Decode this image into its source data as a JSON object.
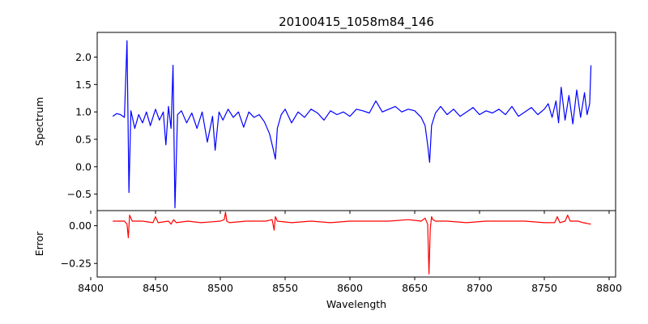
{
  "chart_data": {
    "title": "20100415_1058m84_146",
    "xlabel": "Wavelength",
    "xlim": [
      8405,
      8805
    ],
    "xticks": [
      8400,
      8450,
      8500,
      8550,
      8600,
      8650,
      8700,
      8750,
      8800
    ],
    "xtick_labels": [
      "8400",
      "8450",
      "8500",
      "8550",
      "8600",
      "8650",
      "8700",
      "8750",
      "8800"
    ],
    "panels": [
      {
        "name": "spectrum",
        "type": "line",
        "ylabel": "Spectrum",
        "ylim": [
          -0.8,
          2.45
        ],
        "yticks": [
          -0.5,
          0.0,
          0.5,
          1.0,
          1.5,
          2.0
        ],
        "ytick_labels": [
          "−0.5",
          "0.0",
          "0.5",
          "1.0",
          "1.5",
          "2.0"
        ],
        "color": "#0000ff",
        "x": [
          8417,
          8420,
          8423,
          8426,
          8428,
          8429.5,
          8431,
          8434,
          8437,
          8440,
          8443,
          8446,
          8450,
          8453,
          8456,
          8458,
          8460,
          8462,
          8463.5,
          8465,
          8467,
          8470,
          8474,
          8478,
          8482,
          8486,
          8490,
          8494,
          8496,
          8499,
          8502,
          8506,
          8510,
          8514,
          8518,
          8522,
          8526,
          8530,
          8534,
          8538,
          8541,
          8542.5,
          8544,
          8547,
          8550,
          8555,
          8560,
          8565,
          8570,
          8575,
          8580,
          8585,
          8590,
          8595,
          8600,
          8605,
          8610,
          8615,
          8620,
          8625,
          8630,
          8635,
          8640,
          8645,
          8650,
          8655,
          8658,
          8660,
          8661.5,
          8663,
          8666,
          8670,
          8675,
          8680,
          8685,
          8690,
          8695,
          8700,
          8705,
          8710,
          8715,
          8720,
          8725,
          8730,
          8735,
          8740,
          8745,
          8750,
          8753,
          8756,
          8759,
          8761,
          8763,
          8766,
          8769,
          8772,
          8775,
          8778,
          8781,
          8783,
          8785,
          8786
        ],
        "y": [
          0.92,
          0.97,
          0.95,
          0.9,
          2.3,
          -0.47,
          1.02,
          0.7,
          0.95,
          0.8,
          1.0,
          0.75,
          1.05,
          0.85,
          1.0,
          0.4,
          1.1,
          0.7,
          1.85,
          -0.75,
          0.95,
          1.02,
          0.8,
          0.98,
          0.7,
          1.0,
          0.45,
          0.92,
          0.3,
          1.0,
          0.85,
          1.05,
          0.9,
          1.0,
          0.72,
          1.0,
          0.9,
          0.95,
          0.82,
          0.6,
          0.3,
          0.14,
          0.7,
          0.95,
          1.05,
          0.8,
          1.0,
          0.9,
          1.05,
          0.98,
          0.85,
          1.02,
          0.95,
          1.0,
          0.92,
          1.05,
          1.02,
          0.98,
          1.2,
          1.0,
          1.05,
          1.1,
          1.0,
          1.05,
          1.02,
          0.9,
          0.75,
          0.4,
          0.08,
          0.75,
          0.98,
          1.1,
          0.95,
          1.05,
          0.92,
          1.0,
          1.08,
          0.95,
          1.02,
          0.98,
          1.05,
          0.95,
          1.1,
          0.92,
          1.0,
          1.08,
          0.95,
          1.05,
          1.15,
          0.9,
          1.2,
          0.8,
          1.45,
          0.85,
          1.3,
          0.78,
          1.4,
          0.9,
          1.35,
          0.95,
          1.15,
          1.85
        ]
      },
      {
        "name": "error",
        "type": "line",
        "ylabel": "Error",
        "ylim": [
          -0.34,
          0.1
        ],
        "yticks": [
          -0.25,
          0.0
        ],
        "ytick_labels": [
          "−0.25",
          "0.00"
        ],
        "color": "#ff0000",
        "x": [
          8417,
          8422,
          8426,
          8428,
          8429,
          8430,
          8432,
          8440,
          8448,
          8450,
          8452,
          8460,
          8462,
          8464,
          8466,
          8475,
          8485,
          8500,
          8503,
          8504,
          8505,
          8507,
          8520,
          8535,
          8540,
          8541.5,
          8542.5,
          8544,
          8555,
          8570,
          8585,
          8600,
          8615,
          8630,
          8645,
          8655,
          8658,
          8660,
          8661,
          8662,
          8663,
          8664,
          8666,
          8675,
          8690,
          8705,
          8720,
          8735,
          8750,
          8758,
          8760,
          8762,
          8766,
          8768,
          8770,
          8776,
          8780,
          8786
        ],
        "y": [
          0.03,
          0.03,
          0.03,
          0.01,
          -0.08,
          0.07,
          0.03,
          0.03,
          0.02,
          0.06,
          0.02,
          0.03,
          0.01,
          0.04,
          0.02,
          0.03,
          0.02,
          0.03,
          0.04,
          0.09,
          0.03,
          0.02,
          0.03,
          0.03,
          0.04,
          -0.03,
          0.06,
          0.03,
          0.02,
          0.03,
          0.02,
          0.03,
          0.03,
          0.03,
          0.04,
          0.03,
          0.05,
          0.01,
          -0.32,
          -0.02,
          0.06,
          0.04,
          0.03,
          0.03,
          0.02,
          0.03,
          0.03,
          0.03,
          0.02,
          0.02,
          0.06,
          0.02,
          0.03,
          0.07,
          0.03,
          0.03,
          0.02,
          0.01
        ]
      }
    ]
  }
}
